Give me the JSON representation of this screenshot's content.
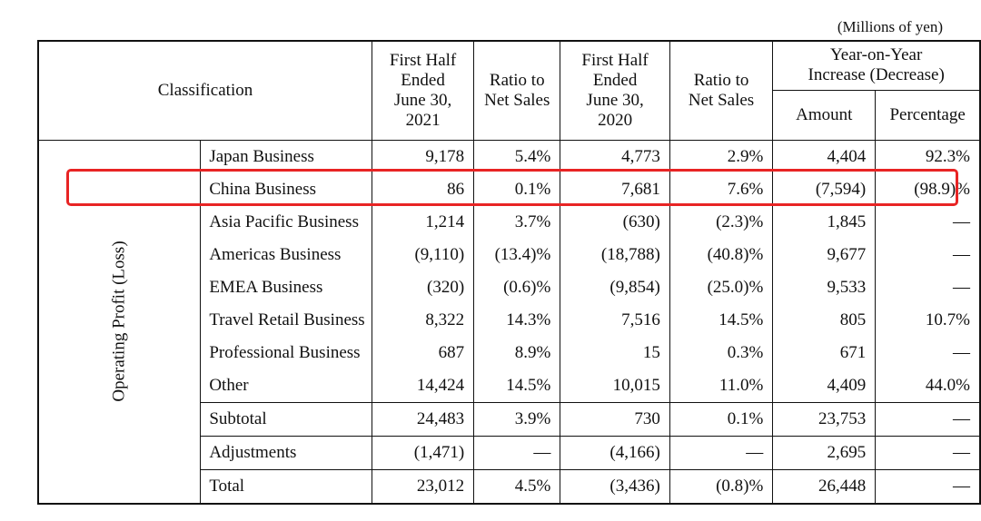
{
  "unit_note": "(Millions of yen)",
  "headers": {
    "classification": "Classification",
    "h1": [
      "First Half",
      "Ended",
      "June 30,",
      "2021"
    ],
    "ratio1": [
      "Ratio to",
      "Net Sales"
    ],
    "h2": [
      "First Half",
      "Ended",
      "June 30,",
      "2020"
    ],
    "ratio2": [
      "Ratio to",
      "Net Sales"
    ],
    "yoy": [
      "Year-on-Year",
      "Increase (Decrease)"
    ],
    "amount": "Amount",
    "percentage": "Percentage"
  },
  "side_label": "Operating Profit (Loss)",
  "rows": [
    {
      "label": "Japan Business",
      "v2021": "9,178",
      "r2021": "5.4%",
      "v2020": "4,773",
      "r2020": "2.9%",
      "amount": "4,404",
      "pct": "92.3%"
    },
    {
      "label": "China Business",
      "v2021": "86",
      "r2021": "0.1%",
      "v2020": "7,681",
      "r2020": "7.6%",
      "amount": "(7,594)",
      "pct": "(98.9)%"
    },
    {
      "label": "Asia Pacific Business",
      "v2021": "1,214",
      "r2021": "3.7%",
      "v2020": "(630)",
      "r2020": "(2.3)%",
      "amount": "1,845",
      "pct": "—"
    },
    {
      "label": "Americas Business",
      "v2021": "(9,110)",
      "r2021": "(13.4)%",
      "v2020": "(18,788)",
      "r2020": "(40.8)%",
      "amount": "9,677",
      "pct": "—"
    },
    {
      "label": "EMEA Business",
      "v2021": "(320)",
      "r2021": "(0.6)%",
      "v2020": "(9,854)",
      "r2020": "(25.0)%",
      "amount": "9,533",
      "pct": "—"
    },
    {
      "label": "Travel Retail Business",
      "v2021": "8,322",
      "r2021": "14.3%",
      "v2020": "7,516",
      "r2020": "14.5%",
      "amount": "805",
      "pct": "10.7%"
    },
    {
      "label": "Professional Business",
      "v2021": "687",
      "r2021": "8.9%",
      "v2020": "15",
      "r2020": "0.3%",
      "amount": "671",
      "pct": "—"
    },
    {
      "label": "Other",
      "v2021": "14,424",
      "r2021": "14.5%",
      "v2020": "10,015",
      "r2020": "11.0%",
      "amount": "4,409",
      "pct": "44.0%"
    },
    {
      "label": "Subtotal",
      "v2021": "24,483",
      "r2021": "3.9%",
      "v2020": "730",
      "r2020": "0.1%",
      "amount": "23,753",
      "pct": "—"
    },
    {
      "label": "Adjustments",
      "v2021": "(1,471)",
      "r2021": "—",
      "v2020": "(4,166)",
      "r2020": "—",
      "amount": "2,695",
      "pct": "—"
    }
  ],
  "total": {
    "label": "Total",
    "v2021": "23,012",
    "r2021": "4.5%",
    "v2020": "(3,436)",
    "r2020": "(0.8)%",
    "amount": "26,448",
    "pct": "—"
  },
  "highlight_color": "#e82424"
}
